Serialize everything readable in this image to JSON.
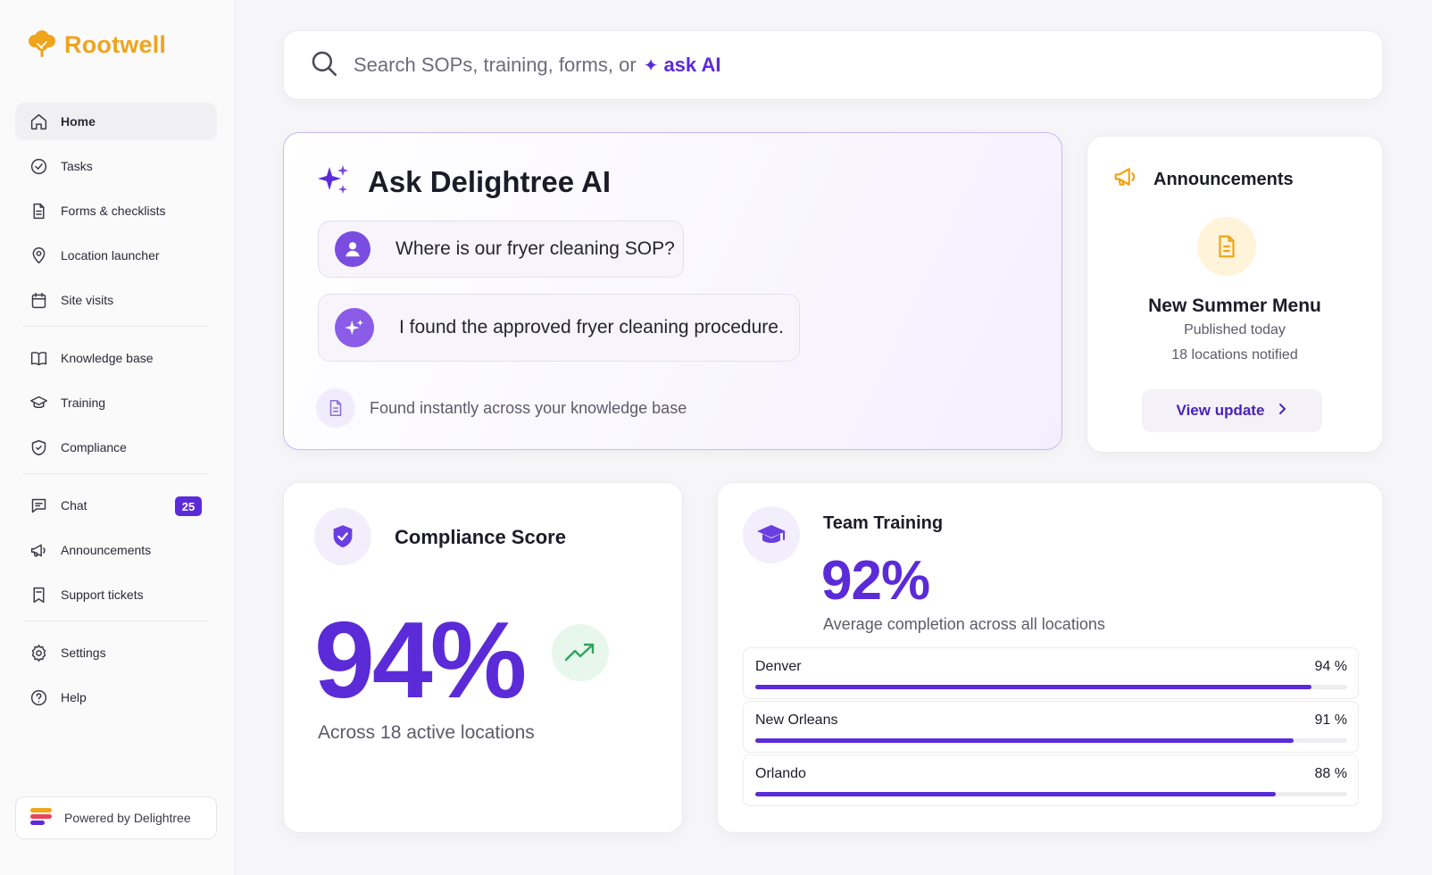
{
  "brand": {
    "name": "Rootwell",
    "color": "#f0a41c",
    "icon": "tree-icon"
  },
  "sidebar": {
    "groups": [
      [
        {
          "label": "Home",
          "icon": "home-icon",
          "active": true
        },
        {
          "label": "Tasks",
          "icon": "check-circle-icon"
        },
        {
          "label": "Forms & checklists",
          "icon": "document-icon"
        },
        {
          "label": "Location launcher",
          "icon": "map-pin-icon"
        },
        {
          "label": "Site visits",
          "icon": "calendar-icon"
        }
      ],
      [
        {
          "label": "Knowledge base",
          "icon": "book-icon"
        },
        {
          "label": "Training",
          "icon": "graduation-cap-icon"
        },
        {
          "label": "Compliance",
          "icon": "shield-check-icon"
        }
      ],
      [
        {
          "label": "Chat",
          "icon": "chat-icon",
          "badge": "25"
        },
        {
          "label": "Announcements",
          "icon": "megaphone-icon"
        },
        {
          "label": "Support tickets",
          "icon": "ticket-icon"
        }
      ],
      [
        {
          "label": "Settings",
          "icon": "gear-icon"
        },
        {
          "label": "Help",
          "icon": "help-circle-icon"
        }
      ]
    ],
    "powered_by": "Powered by Delightree"
  },
  "search": {
    "placeholder": "Search SOPs, training, forms, or",
    "ai_label": "ask AI"
  },
  "ai_card": {
    "title": "Ask Delightree AI",
    "question": "Where is our fryer cleaning SOP?",
    "answer": "I found the approved fryer cleaning procedure.",
    "footer": "Found instantly across your knowledge base"
  },
  "announcements": {
    "heading": "Announcements",
    "title": "New Summer Menu",
    "published": "Published today",
    "notified": "18 locations notified",
    "button": "View update"
  },
  "compliance": {
    "title": "Compliance Score",
    "value": "94%",
    "subtitle": "Across 18 active locations"
  },
  "training": {
    "title": "Team Training",
    "value": "92%",
    "subtitle": "Average completion across all locations",
    "locations": [
      {
        "name": "Denver",
        "pct_label": "94 %",
        "pct": 94
      },
      {
        "name": "New Orleans",
        "pct_label": "91 %",
        "pct": 91
      },
      {
        "name": "Orlando",
        "pct_label": "88 %",
        "pct": 88
      }
    ]
  },
  "colors": {
    "accent": "#5b2bd8",
    "success": "#2fa55a",
    "warning": "#f0a41c"
  }
}
